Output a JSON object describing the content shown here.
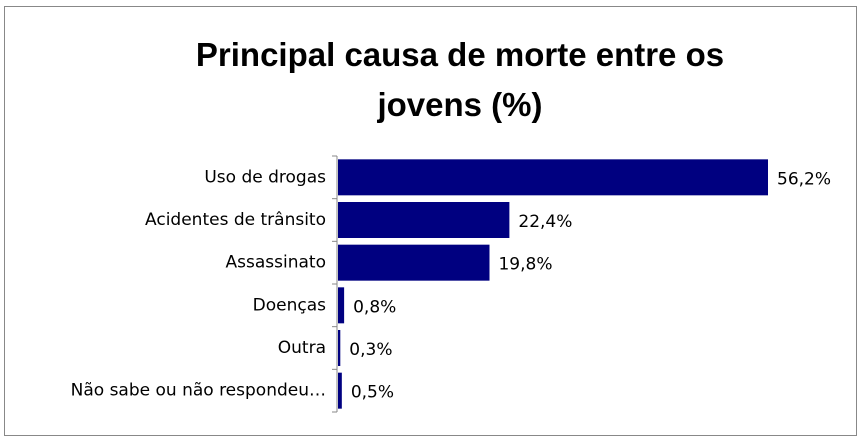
{
  "chart_data": {
    "type": "bar",
    "orientation": "horizontal",
    "title": "Principal causa de morte entre os jovens (%)",
    "categories": [
      "Uso de drogas",
      "Acidentes de trânsito",
      "Assassinato",
      "Doenças",
      "Outra",
      "Não sabe ou não respondeu…"
    ],
    "values": [
      56.2,
      22.4,
      19.8,
      0.8,
      0.3,
      0.5
    ],
    "value_labels": [
      "56,2%",
      "22,4%",
      "19,8%",
      "0,8%",
      "0,3%",
      "0,5%"
    ],
    "color": "#000080"
  }
}
